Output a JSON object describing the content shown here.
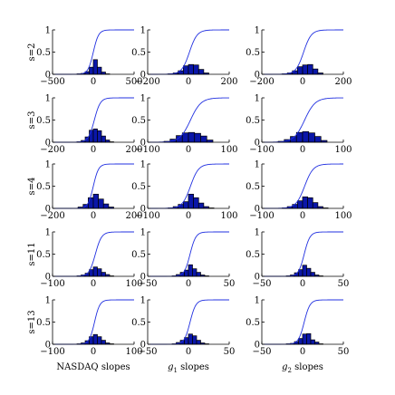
{
  "chart_data": {
    "type": "bar",
    "description_grid": "5x3 small multiples of histograms with overlaid cumulative distribution curves",
    "row_labels": [
      "s=2",
      "s=3",
      "s=4",
      "s=11",
      "s=13"
    ],
    "column_xlabels": [
      {
        "main": "NASDAQ slopes",
        "sub": ""
      },
      {
        "main": "g",
        "sub": "1",
        "tail": " slopes"
      },
      {
        "main": "g",
        "sub": "2",
        "tail": " slopes"
      }
    ],
    "ylim": [
      0,
      1
    ],
    "yticks": [
      "0",
      "0.5",
      "1"
    ],
    "panels": [
      {
        "row": 0,
        "col": 0,
        "xlim": [
          -500,
          500
        ],
        "xticks": [
          -500,
          0,
          500
        ],
        "bin_edges": [
          -200,
          -150,
          -100,
          -50,
          0,
          50,
          100,
          150,
          200
        ],
        "values": [
          0.01,
          0.02,
          0.06,
          0.16,
          0.33,
          0.16,
          0.05,
          0.01
        ],
        "cdf_center": 0,
        "cdf_scale": 55
      },
      {
        "row": 0,
        "col": 1,
        "xlim": [
          -200,
          200
        ],
        "xticks": [
          -200,
          0,
          200
        ],
        "bin_edges": [
          -100,
          -75,
          -50,
          -25,
          0,
          25,
          50,
          75,
          100
        ],
        "values": [
          0.01,
          0.03,
          0.08,
          0.19,
          0.22,
          0.21,
          0.11,
          0.03
        ],
        "cdf_center": 5,
        "cdf_scale": 32
      },
      {
        "row": 0,
        "col": 2,
        "xlim": [
          -200,
          200
        ],
        "xticks": [
          -200,
          0,
          200
        ],
        "bin_edges": [
          -100,
          -75,
          -50,
          -25,
          0,
          25,
          50,
          75,
          100
        ],
        "values": [
          0.01,
          0.03,
          0.08,
          0.17,
          0.21,
          0.22,
          0.12,
          0.03
        ],
        "cdf_center": 5,
        "cdf_scale": 32
      },
      {
        "row": 1,
        "col": 0,
        "xlim": [
          -200,
          200
        ],
        "xticks": [
          -200,
          0,
          200
        ],
        "bin_edges": [
          -80,
          -60,
          -40,
          -20,
          0,
          20,
          40,
          60,
          80,
          100
        ],
        "values": [
          0.01,
          0.04,
          0.12,
          0.27,
          0.3,
          0.26,
          0.14,
          0.05,
          0.01
        ],
        "cdf_center": 5,
        "cdf_scale": 25
      },
      {
        "row": 1,
        "col": 1,
        "xlim": [
          -100,
          100
        ],
        "xticks": [
          -100,
          0,
          100
        ],
        "bin_edges": [
          -60,
          -45,
          -30,
          -15,
          0,
          15,
          30,
          45,
          60
        ],
        "values": [
          0.02,
          0.07,
          0.15,
          0.21,
          0.22,
          0.2,
          0.14,
          0.05
        ],
        "cdf_center": 5,
        "cdf_scale": 22
      },
      {
        "row": 1,
        "col": 2,
        "xlim": [
          -100,
          100
        ],
        "xticks": [
          -100,
          0,
          100
        ],
        "bin_edges": [
          -60,
          -45,
          -30,
          -15,
          0,
          15,
          30,
          45,
          60
        ],
        "values": [
          0.02,
          0.06,
          0.13,
          0.22,
          0.24,
          0.21,
          0.13,
          0.04
        ],
        "cdf_center": 5,
        "cdf_scale": 22
      },
      {
        "row": 2,
        "col": 0,
        "xlim": [
          -200,
          200
        ],
        "xticks": [
          -200,
          0,
          200
        ],
        "bin_edges": [
          -75,
          -50,
          -25,
          0,
          25,
          50,
          75,
          100
        ],
        "values": [
          0.03,
          0.09,
          0.24,
          0.32,
          0.21,
          0.1,
          0.03
        ],
        "cdf_center": 0,
        "cdf_scale": 22
      },
      {
        "row": 2,
        "col": 1,
        "xlim": [
          -100,
          100
        ],
        "xticks": [
          -100,
          0,
          100
        ],
        "bin_edges": [
          -50,
          -37.5,
          -25,
          -12.5,
          0,
          12.5,
          25,
          37.5,
          50,
          62.5
        ],
        "values": [
          0.01,
          0.04,
          0.09,
          0.15,
          0.32,
          0.24,
          0.12,
          0.04,
          0.01
        ],
        "cdf_center": 5,
        "cdf_scale": 17
      },
      {
        "row": 2,
        "col": 2,
        "xlim": [
          -100,
          100
        ],
        "xticks": [
          -100,
          0,
          100
        ],
        "bin_edges": [
          -50,
          -37.5,
          -25,
          -12.5,
          0,
          12.5,
          25,
          37.5,
          50,
          62.5
        ],
        "values": [
          0.01,
          0.04,
          0.09,
          0.17,
          0.26,
          0.24,
          0.13,
          0.04,
          0.01
        ],
        "cdf_center": 5,
        "cdf_scale": 18
      },
      {
        "row": 3,
        "col": 0,
        "xlim": [
          -100,
          100
        ],
        "xticks": [
          -100,
          0,
          100
        ],
        "bin_edges": [
          -40,
          -30,
          -20,
          -10,
          0,
          10,
          20,
          30,
          40,
          50
        ],
        "values": [
          0.01,
          0.03,
          0.07,
          0.15,
          0.21,
          0.17,
          0.09,
          0.04,
          0.01
        ],
        "cdf_center": 5,
        "cdf_scale": 13
      },
      {
        "row": 3,
        "col": 1,
        "xlim": [
          -50,
          50
        ],
        "xticks": [
          -50,
          0,
          50
        ],
        "bin_edges": [
          -20,
          -15,
          -10,
          -5,
          0,
          5,
          10,
          15,
          20,
          25
        ],
        "values": [
          0.01,
          0.04,
          0.09,
          0.14,
          0.26,
          0.17,
          0.09,
          0.03,
          0.01
        ],
        "cdf_center": 2,
        "cdf_scale": 6
      },
      {
        "row": 3,
        "col": 2,
        "xlim": [
          -50,
          50
        ],
        "xticks": [
          -50,
          0,
          50
        ],
        "bin_edges": [
          -20,
          -15,
          -10,
          -5,
          0,
          5,
          10,
          15,
          20,
          25
        ],
        "values": [
          0.01,
          0.03,
          0.08,
          0.15,
          0.25,
          0.18,
          0.09,
          0.03,
          0.01
        ],
        "cdf_center": 2,
        "cdf_scale": 6
      },
      {
        "row": 4,
        "col": 0,
        "xlim": [
          -100,
          100
        ],
        "xticks": [
          -100,
          0,
          100
        ],
        "bin_edges": [
          -40,
          -30,
          -20,
          -10,
          0,
          10,
          20,
          30,
          40,
          50
        ],
        "values": [
          0.01,
          0.03,
          0.08,
          0.17,
          0.22,
          0.17,
          0.09,
          0.03,
          0.01
        ],
        "cdf_center": 3,
        "cdf_scale": 11
      },
      {
        "row": 4,
        "col": 1,
        "xlim": [
          -50,
          50
        ],
        "xticks": [
          -50,
          0,
          50
        ],
        "bin_edges": [
          -20,
          -15,
          -10,
          -5,
          0,
          5,
          10,
          15,
          20,
          25
        ],
        "values": [
          0.01,
          0.04,
          0.09,
          0.15,
          0.23,
          0.19,
          0.09,
          0.03,
          0.01
        ],
        "cdf_center": 2,
        "cdf_scale": 6
      },
      {
        "row": 4,
        "col": 2,
        "xlim": [
          -50,
          50
        ],
        "xticks": [
          -50,
          0,
          50
        ],
        "bin_edges": [
          -20,
          -15,
          -10,
          -5,
          0,
          5,
          10,
          15,
          20,
          25
        ],
        "values": [
          0.01,
          0.02,
          0.06,
          0.13,
          0.23,
          0.24,
          0.1,
          0.05,
          0.01
        ],
        "cdf_center": 2,
        "cdf_scale": 6
      }
    ],
    "colors": {
      "bar": "#0a16a8",
      "cdf": "#2130e0"
    }
  }
}
